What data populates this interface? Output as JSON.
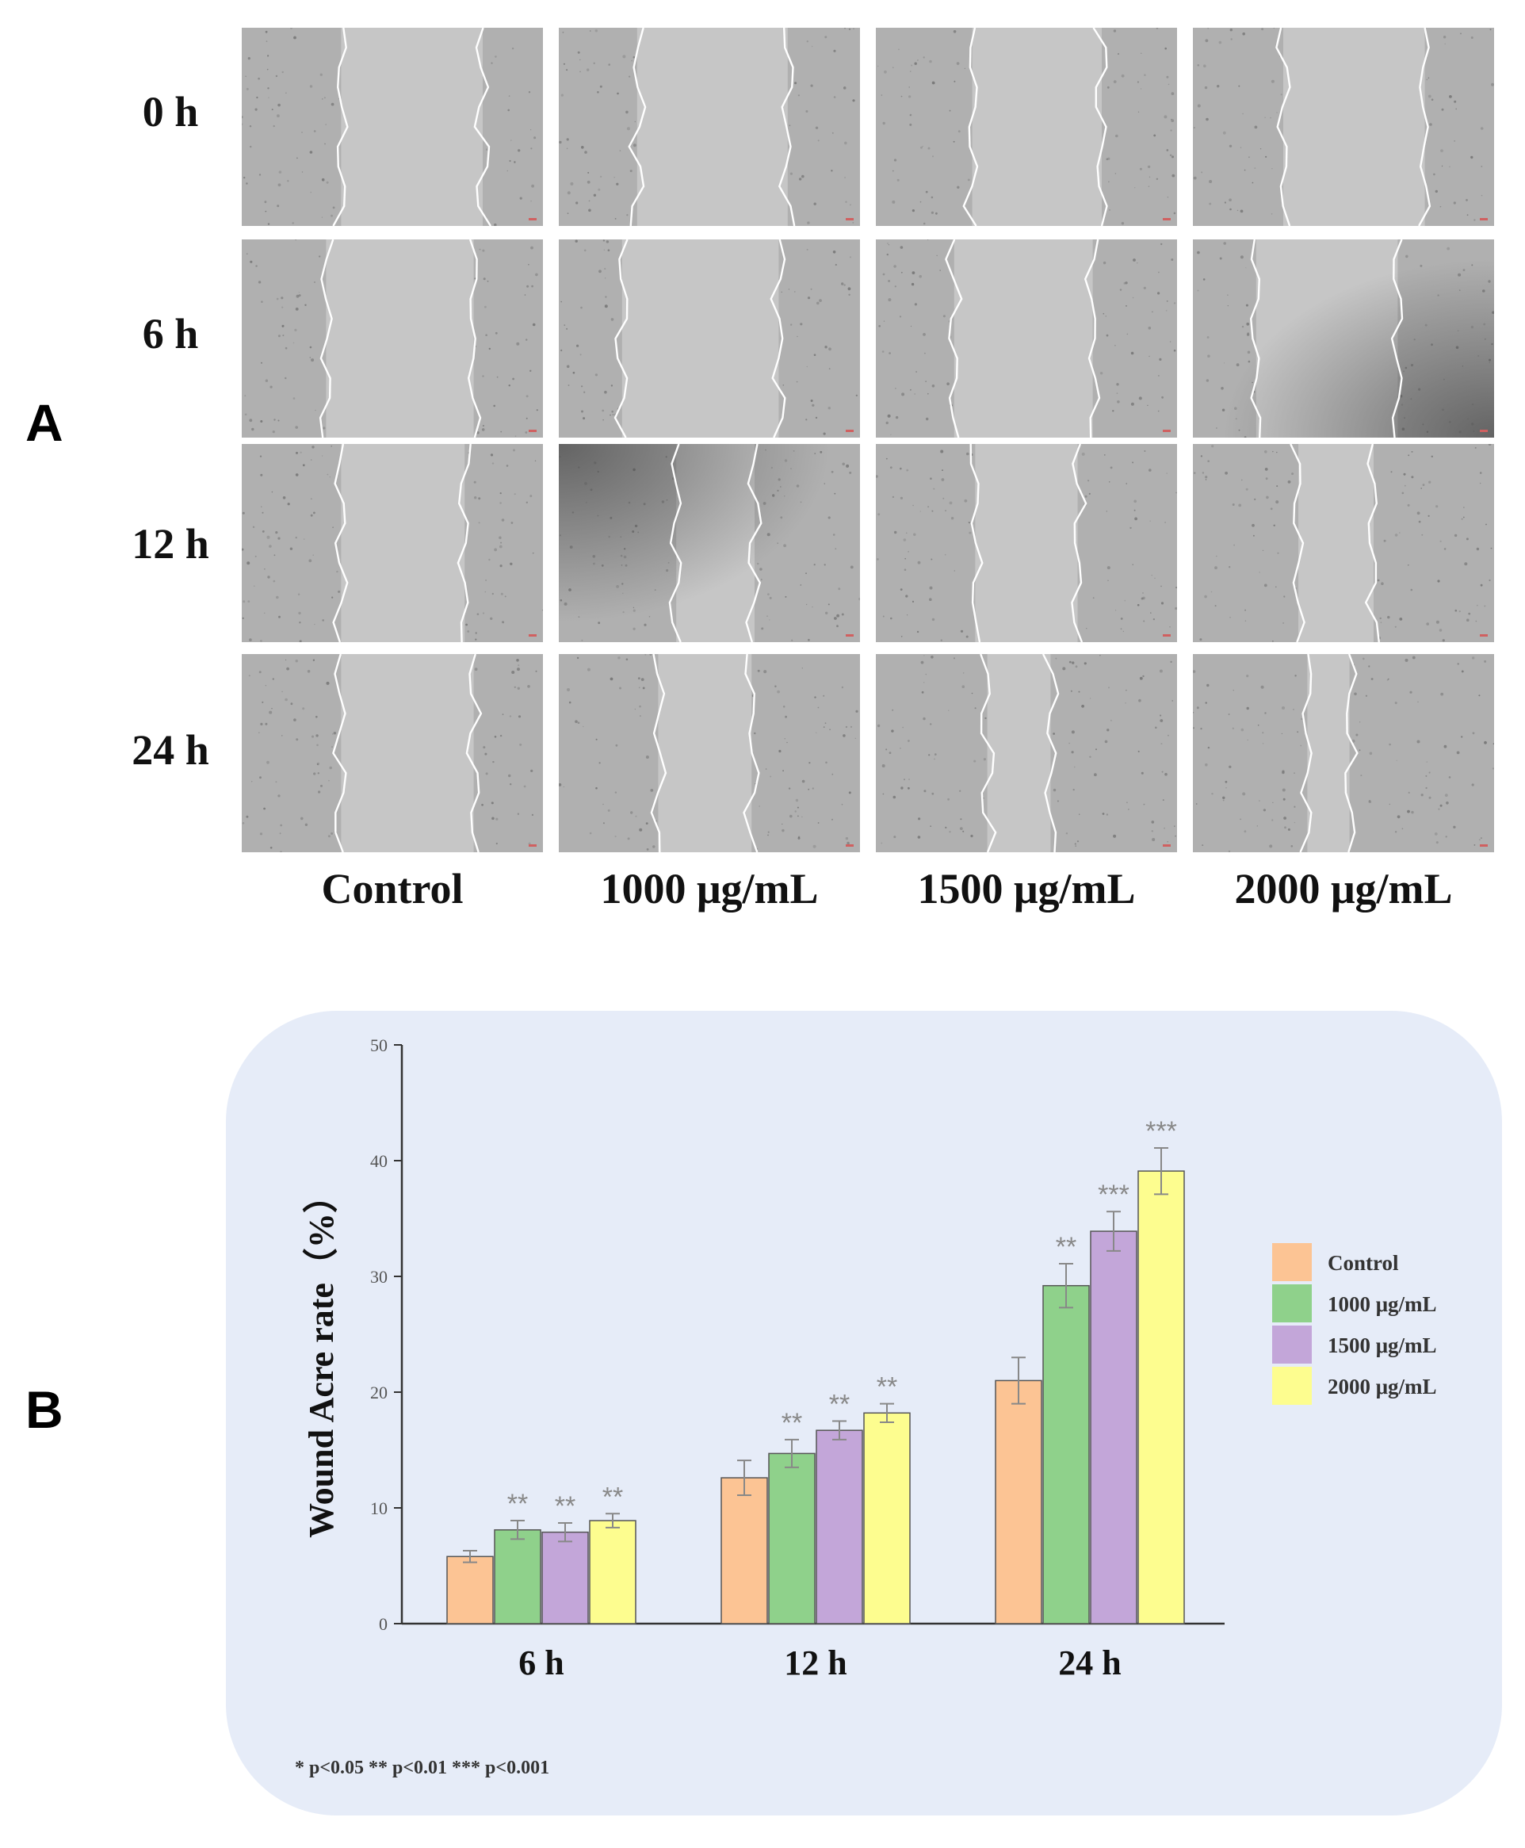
{
  "panel_a": {
    "label": "A",
    "rows": [
      "0 h",
      "6 h",
      "12 h",
      "24 h"
    ],
    "columns": [
      "Control",
      "1000 μg/mL",
      "1500 μg/mL",
      "2000 μg/mL"
    ],
    "wound_edges": [
      [
        [
          0.33,
          0.8
        ],
        [
          0.26,
          0.76
        ],
        [
          0.32,
          0.75
        ],
        [
          0.3,
          0.77
        ]
      ],
      [
        [
          0.28,
          0.77
        ],
        [
          0.21,
          0.73
        ],
        [
          0.26,
          0.72
        ],
        [
          0.21,
          0.68
        ]
      ],
      [
        [
          0.33,
          0.74
        ],
        [
          0.39,
          0.65
        ],
        [
          0.33,
          0.67
        ],
        [
          0.35,
          0.6
        ]
      ],
      [
        [
          0.33,
          0.77
        ],
        [
          0.33,
          0.64
        ],
        [
          0.37,
          0.58
        ],
        [
          0.38,
          0.52
        ]
      ]
    ],
    "colors": {
      "background": "#b0b0b0",
      "wound": "#c6c6c6",
      "edge": "#ffffff",
      "vignette": "#4a4a4a"
    }
  },
  "panel_b": {
    "label": "B"
  },
  "chart_data": {
    "type": "bar",
    "categories": [
      "6 h",
      "12 h",
      "24 h"
    ],
    "series": [
      {
        "name": "Control",
        "values": [
          5.8,
          12.6,
          21.0
        ],
        "errors": [
          0.5,
          1.5,
          2.0
        ],
        "marks": [
          "",
          "",
          ""
        ],
        "color": "#fcc494"
      },
      {
        "name": "1000 μg/mL",
        "values": [
          8.1,
          14.7,
          29.2
        ],
        "errors": [
          0.8,
          1.2,
          1.9
        ],
        "marks": [
          "**",
          "**",
          "**"
        ],
        "color": "#8fd18b"
      },
      {
        "name": "1500 μg/mL",
        "values": [
          7.9,
          16.7,
          33.9
        ],
        "errors": [
          0.8,
          0.8,
          1.7
        ],
        "marks": [
          "**",
          "**",
          "***"
        ],
        "color": "#c3a6d9"
      },
      {
        "name": "2000 μg/mL",
        "values": [
          8.9,
          18.2,
          39.1
        ],
        "errors": [
          0.6,
          0.8,
          2.0
        ],
        "marks": [
          "**",
          "**",
          "***"
        ],
        "color": "#fdfd8f"
      }
    ],
    "ylabel": "Wound Acre rate（%）",
    "ylim": [
      0,
      50
    ],
    "yticks": [
      0,
      10,
      20,
      30,
      40,
      50
    ],
    "legend_position": "right",
    "significance_note": "* p<0.05    ** p<0.01    *** p<0.001",
    "colors": {
      "axis": "#333333",
      "error_bar": "#888888",
      "mark": "#888888"
    }
  }
}
